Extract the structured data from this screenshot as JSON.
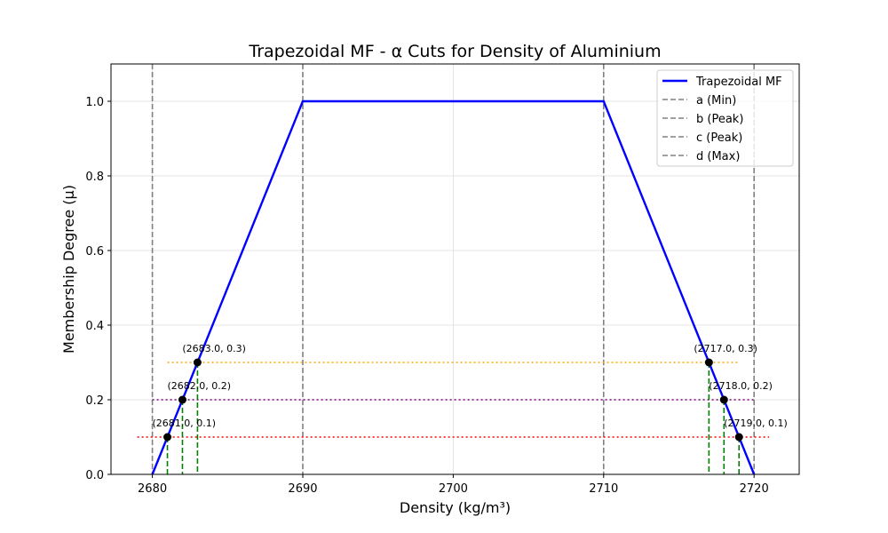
{
  "chart_data": {
    "type": "line",
    "title": "Trapezoidal MF - α Cuts for Density of Aluminium",
    "xlabel": "Density (kg/m³)",
    "ylabel": "Membership Degree (μ)",
    "xlim": [
      2677.25,
      2723
    ],
    "ylim": [
      0,
      1.1
    ],
    "xticks": [
      2680,
      2690,
      2700,
      2710,
      2720
    ],
    "yticks": [
      0.0,
      0.2,
      0.4,
      0.6,
      0.8,
      1.0
    ],
    "grid": true,
    "legend_position": "top-right",
    "series": [
      {
        "name": "Trapezoidal MF",
        "color": "#0000ff",
        "x": [
          2680,
          2690,
          2710,
          2720
        ],
        "y": [
          0,
          1,
          1,
          0
        ]
      }
    ],
    "vertical_lines": [
      {
        "name": "a (Min)",
        "x": 2680,
        "color": "#808080"
      },
      {
        "name": "b (Peak)",
        "x": 2690,
        "color": "#808080"
      },
      {
        "name": "c (Peak)",
        "x": 2710,
        "color": "#808080"
      },
      {
        "name": "d (Max)",
        "x": 2720,
        "color": "#808080"
      }
    ],
    "alpha_cuts": [
      {
        "alpha": 0.1,
        "color": "#ff0000",
        "x_from": 2679.0,
        "x_to": 2721.0,
        "left": {
          "x": 2681.0,
          "label": "(2681.0, 0.1)"
        },
        "right": {
          "x": 2719.0,
          "label": "(2719.0, 0.1)"
        }
      },
      {
        "alpha": 0.2,
        "color": "#800080",
        "x_from": 2680.0,
        "x_to": 2720.0,
        "left": {
          "x": 2682.0,
          "label": "(2682.0, 0.2)"
        },
        "right": {
          "x": 2718.0,
          "label": "(2718.0, 0.2)"
        }
      },
      {
        "alpha": 0.3,
        "color": "#ffa500",
        "x_from": 2681.0,
        "x_to": 2719.0,
        "left": {
          "x": 2683.0,
          "label": "(2683.0, 0.3)"
        },
        "right": {
          "x": 2717.0,
          "label": "(2717.0, 0.3)"
        }
      }
    ],
    "drop_line_color": "#008000",
    "marker_color": "#000000"
  }
}
